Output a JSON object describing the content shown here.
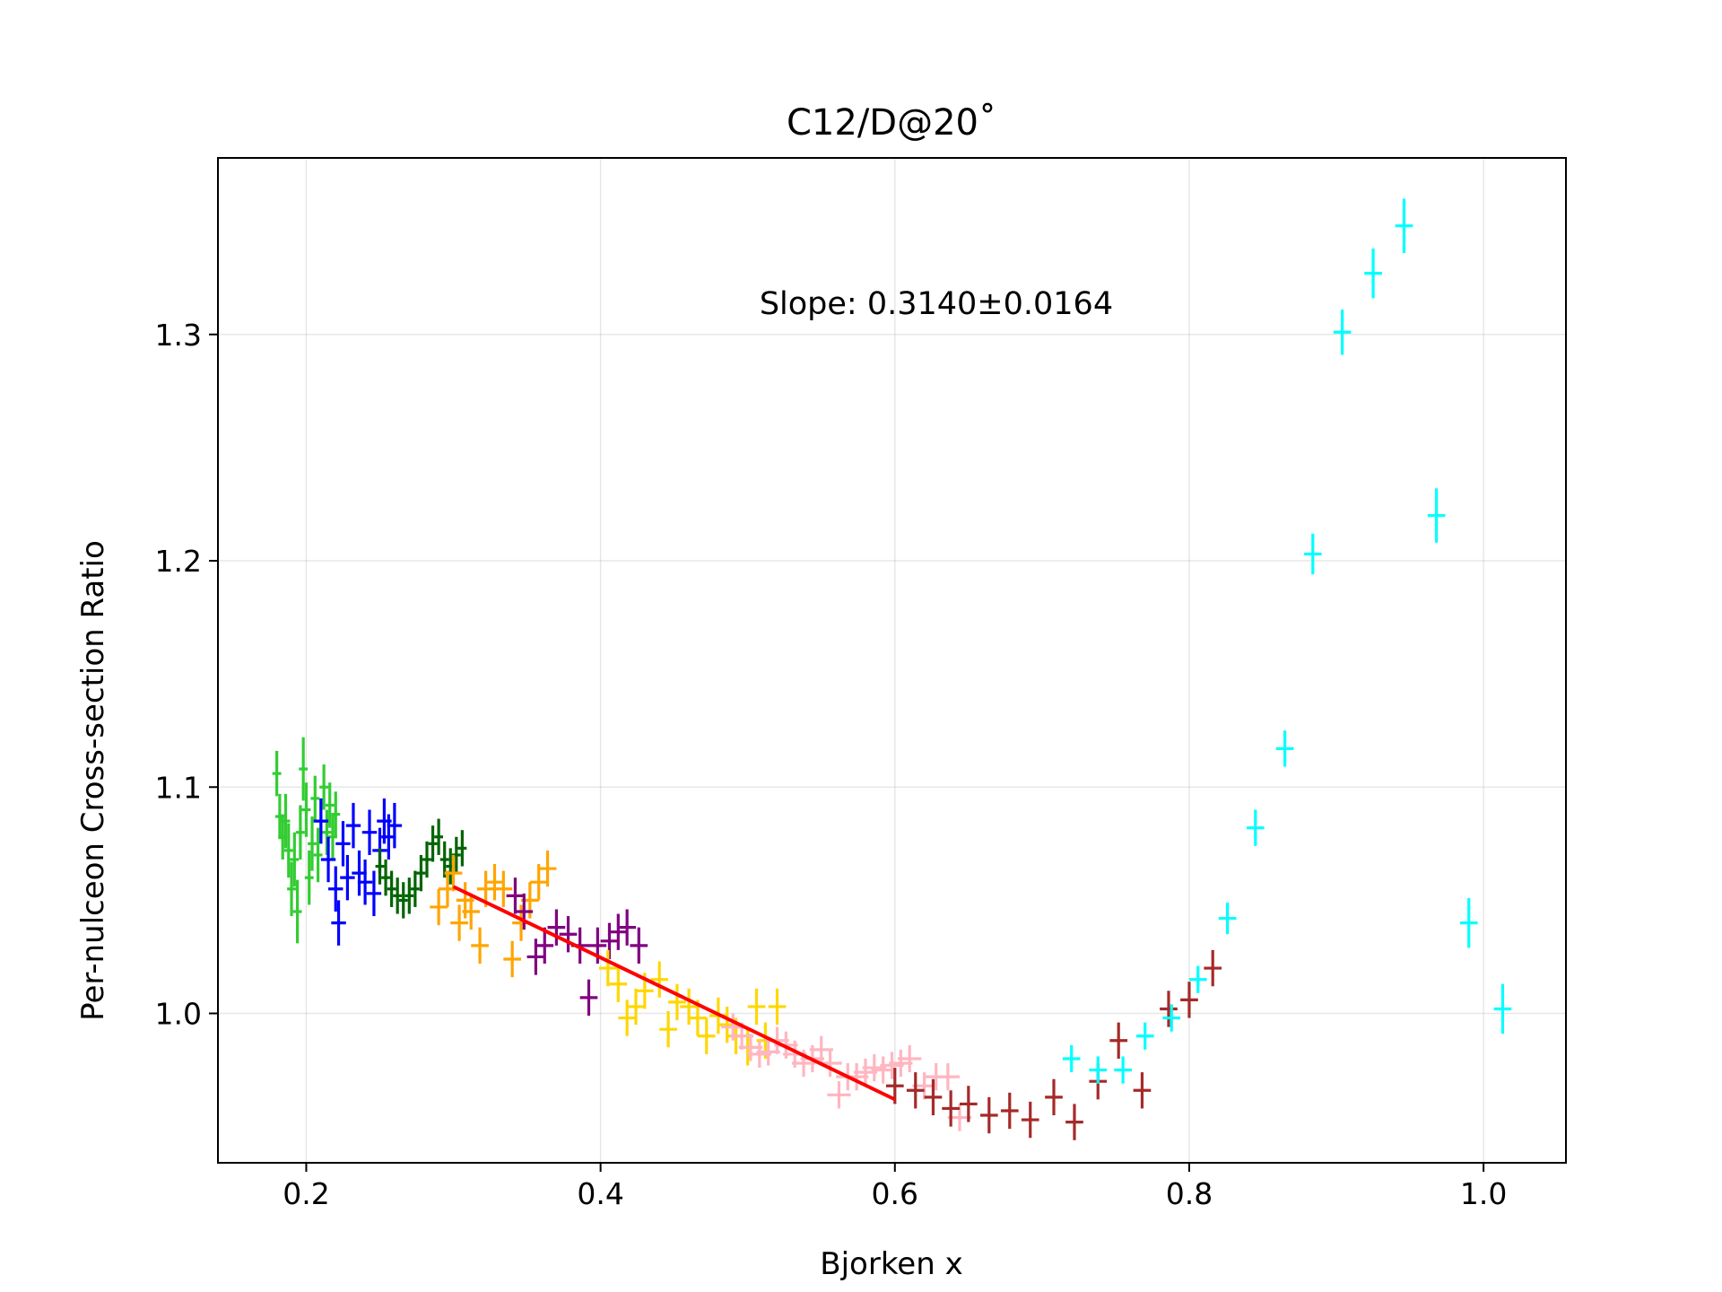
{
  "chart_data": {
    "type": "scatter",
    "title": "C12/D@20˚",
    "xlabel": "Bjorken x",
    "ylabel": "Per-nulceon Cross-section Ratio",
    "xlim": [
      0.14,
      1.056
    ],
    "ylim": [
      0.934,
      1.378
    ],
    "xticks": [
      0.2,
      0.4,
      0.6,
      0.8,
      1.0
    ],
    "xtick_labels": [
      "0.2",
      "0.4",
      "0.6",
      "0.8",
      "1.0"
    ],
    "yticks": [
      1.0,
      1.1,
      1.2,
      1.3
    ],
    "ytick_labels": [
      "1.0",
      "1.1",
      "1.2",
      "1.3"
    ],
    "grid": true,
    "annotation": {
      "text": "Slope: 0.3140±0.0164",
      "x": 0.508,
      "y": 1.309
    },
    "fit_line": {
      "color": "#ff0000",
      "x": [
        0.3,
        0.6
      ],
      "y": [
        1.056,
        0.962
      ],
      "slope": 0.314,
      "slope_error": 0.0164
    },
    "series": [
      {
        "color": "#32cd32",
        "points": [
          [
            0.18,
            1.106,
            0.003,
            0.01
          ],
          [
            0.182,
            1.087,
            0.003,
            0.01
          ],
          [
            0.184,
            1.078,
            0.003,
            0.01
          ],
          [
            0.186,
            1.085,
            0.003,
            0.012
          ],
          [
            0.188,
            1.072,
            0.003,
            0.012
          ],
          [
            0.19,
            1.055,
            0.003,
            0.012
          ],
          [
            0.192,
            1.068,
            0.003,
            0.012
          ],
          [
            0.194,
            1.045,
            0.003,
            0.014
          ],
          [
            0.196,
            1.08,
            0.003,
            0.012
          ],
          [
            0.198,
            1.108,
            0.003,
            0.014
          ],
          [
            0.2,
            1.09,
            0.003,
            0.012
          ],
          [
            0.202,
            1.06,
            0.003,
            0.012
          ],
          [
            0.204,
            1.075,
            0.003,
            0.012
          ],
          [
            0.206,
            1.095,
            0.003,
            0.01
          ],
          [
            0.208,
            1.07,
            0.003,
            0.012
          ],
          [
            0.21,
            1.085,
            0.003,
            0.01
          ],
          [
            0.212,
            1.1,
            0.003,
            0.01
          ],
          [
            0.214,
            1.08,
            0.003,
            0.01
          ],
          [
            0.216,
            1.092,
            0.003,
            0.01
          ],
          [
            0.218,
            1.078,
            0.003,
            0.01
          ],
          [
            0.22,
            1.088,
            0.003,
            0.01
          ]
        ]
      },
      {
        "color": "#0000ff",
        "points": [
          [
            0.21,
            1.085,
            0.005,
            0.01
          ],
          [
            0.215,
            1.068,
            0.005,
            0.01
          ],
          [
            0.22,
            1.055,
            0.005,
            0.01
          ],
          [
            0.222,
            1.04,
            0.005,
            0.01
          ],
          [
            0.225,
            1.075,
            0.005,
            0.01
          ],
          [
            0.228,
            1.06,
            0.005,
            0.01
          ],
          [
            0.232,
            1.083,
            0.005,
            0.01
          ],
          [
            0.236,
            1.062,
            0.005,
            0.01
          ],
          [
            0.24,
            1.058,
            0.005,
            0.01
          ],
          [
            0.243,
            1.08,
            0.005,
            0.01
          ],
          [
            0.246,
            1.053,
            0.005,
            0.01
          ],
          [
            0.25,
            1.072,
            0.005,
            0.01
          ],
          [
            0.253,
            1.085,
            0.005,
            0.01
          ],
          [
            0.256,
            1.078,
            0.005,
            0.01
          ],
          [
            0.26,
            1.083,
            0.005,
            0.01
          ]
        ]
      },
      {
        "color": "#006400",
        "points": [
          [
            0.25,
            1.065,
            0.003,
            0.008
          ],
          [
            0.254,
            1.06,
            0.003,
            0.008
          ],
          [
            0.258,
            1.055,
            0.003,
            0.008
          ],
          [
            0.262,
            1.052,
            0.003,
            0.008
          ],
          [
            0.266,
            1.05,
            0.003,
            0.008
          ],
          [
            0.27,
            1.052,
            0.003,
            0.008
          ],
          [
            0.274,
            1.055,
            0.003,
            0.008
          ],
          [
            0.278,
            1.062,
            0.003,
            0.008
          ],
          [
            0.282,
            1.068,
            0.003,
            0.008
          ],
          [
            0.286,
            1.075,
            0.003,
            0.008
          ],
          [
            0.29,
            1.078,
            0.003,
            0.008
          ],
          [
            0.294,
            1.068,
            0.003,
            0.008
          ],
          [
            0.298,
            1.065,
            0.003,
            0.008
          ],
          [
            0.302,
            1.07,
            0.003,
            0.008
          ],
          [
            0.306,
            1.073,
            0.003,
            0.008
          ]
        ]
      },
      {
        "color": "#ffa500",
        "points": [
          [
            0.29,
            1.047,
            0.006,
            0.008
          ],
          [
            0.296,
            1.055,
            0.006,
            0.008
          ],
          [
            0.3,
            1.062,
            0.006,
            0.008
          ],
          [
            0.304,
            1.04,
            0.006,
            0.008
          ],
          [
            0.308,
            1.05,
            0.006,
            0.008
          ],
          [
            0.312,
            1.045,
            0.006,
            0.008
          ],
          [
            0.318,
            1.03,
            0.006,
            0.008
          ],
          [
            0.322,
            1.055,
            0.006,
            0.008
          ],
          [
            0.328,
            1.058,
            0.006,
            0.008
          ],
          [
            0.334,
            1.055,
            0.006,
            0.008
          ],
          [
            0.34,
            1.024,
            0.006,
            0.008
          ],
          [
            0.346,
            1.04,
            0.006,
            0.008
          ],
          [
            0.352,
            1.05,
            0.006,
            0.008
          ],
          [
            0.358,
            1.058,
            0.006,
            0.008
          ],
          [
            0.364,
            1.064,
            0.006,
            0.008
          ]
        ]
      },
      {
        "color": "#800080",
        "points": [
          [
            0.342,
            1.052,
            0.006,
            0.008
          ],
          [
            0.348,
            1.045,
            0.006,
            0.008
          ],
          [
            0.356,
            1.025,
            0.006,
            0.008
          ],
          [
            0.362,
            1.03,
            0.006,
            0.008
          ],
          [
            0.37,
            1.038,
            0.006,
            0.008
          ],
          [
            0.378,
            1.035,
            0.006,
            0.008
          ],
          [
            0.386,
            1.03,
            0.006,
            0.008
          ],
          [
            0.392,
            1.007,
            0.006,
            0.008
          ],
          [
            0.398,
            1.03,
            0.006,
            0.008
          ],
          [
            0.406,
            1.032,
            0.006,
            0.008
          ],
          [
            0.412,
            1.036,
            0.006,
            0.008
          ],
          [
            0.418,
            1.038,
            0.006,
            0.008
          ],
          [
            0.426,
            1.03,
            0.006,
            0.008
          ]
        ]
      },
      {
        "color": "#ffd700",
        "points": [
          [
            0.405,
            1.02,
            0.006,
            0.008
          ],
          [
            0.412,
            1.013,
            0.006,
            0.008
          ],
          [
            0.418,
            0.998,
            0.006,
            0.008
          ],
          [
            0.424,
            1.003,
            0.006,
            0.008
          ],
          [
            0.43,
            1.01,
            0.006,
            0.008
          ],
          [
            0.44,
            1.015,
            0.006,
            0.008
          ],
          [
            0.446,
            0.993,
            0.006,
            0.008
          ],
          [
            0.452,
            1.005,
            0.006,
            0.008
          ],
          [
            0.46,
            1.003,
            0.006,
            0.008
          ],
          [
            0.466,
            0.998,
            0.006,
            0.008
          ],
          [
            0.472,
            0.99,
            0.006,
            0.008
          ],
          [
            0.48,
            0.999,
            0.006,
            0.008
          ],
          [
            0.486,
            0.995,
            0.006,
            0.008
          ],
          [
            0.492,
            0.99,
            0.006,
            0.008
          ],
          [
            0.5,
            0.985,
            0.006,
            0.008
          ],
          [
            0.506,
            1.003,
            0.006,
            0.008
          ],
          [
            0.512,
            0.988,
            0.006,
            0.008
          ],
          [
            0.52,
            1.003,
            0.006,
            0.008
          ]
        ]
      },
      {
        "color": "#ffb6c1",
        "points": [
          [
            0.49,
            0.994,
            0.008,
            0.006
          ],
          [
            0.496,
            0.99,
            0.008,
            0.006
          ],
          [
            0.502,
            0.985,
            0.008,
            0.006
          ],
          [
            0.508,
            0.982,
            0.008,
            0.006
          ],
          [
            0.514,
            0.983,
            0.008,
            0.006
          ],
          [
            0.52,
            0.988,
            0.008,
            0.006
          ],
          [
            0.526,
            0.986,
            0.008,
            0.006
          ],
          [
            0.532,
            0.982,
            0.008,
            0.006
          ],
          [
            0.538,
            0.978,
            0.008,
            0.006
          ],
          [
            0.544,
            0.98,
            0.008,
            0.006
          ],
          [
            0.55,
            0.984,
            0.008,
            0.006
          ],
          [
            0.556,
            0.978,
            0.008,
            0.006
          ],
          [
            0.562,
            0.964,
            0.008,
            0.006
          ],
          [
            0.568,
            0.972,
            0.008,
            0.006
          ],
          [
            0.574,
            0.972,
            0.008,
            0.006
          ],
          [
            0.58,
            0.974,
            0.008,
            0.006
          ],
          [
            0.586,
            0.976,
            0.008,
            0.006
          ],
          [
            0.592,
            0.975,
            0.008,
            0.006
          ],
          [
            0.598,
            0.977,
            0.008,
            0.006
          ],
          [
            0.604,
            0.978,
            0.008,
            0.006
          ],
          [
            0.61,
            0.98,
            0.008,
            0.006
          ],
          [
            0.62,
            0.968,
            0.008,
            0.006
          ],
          [
            0.628,
            0.972,
            0.008,
            0.006
          ],
          [
            0.636,
            0.972,
            0.008,
            0.006
          ],
          [
            0.644,
            0.954,
            0.008,
            0.006
          ]
        ]
      },
      {
        "color": "#a52a2a",
        "points": [
          [
            0.6,
            0.968,
            0.006,
            0.008
          ],
          [
            0.614,
            0.966,
            0.006,
            0.008
          ],
          [
            0.626,
            0.963,
            0.006,
            0.008
          ],
          [
            0.638,
            0.958,
            0.006,
            0.008
          ],
          [
            0.65,
            0.96,
            0.006,
            0.008
          ],
          [
            0.664,
            0.955,
            0.006,
            0.008
          ],
          [
            0.678,
            0.957,
            0.006,
            0.008
          ],
          [
            0.692,
            0.953,
            0.006,
            0.008
          ],
          [
            0.708,
            0.963,
            0.006,
            0.008
          ],
          [
            0.722,
            0.952,
            0.006,
            0.008
          ],
          [
            0.738,
            0.97,
            0.006,
            0.008
          ],
          [
            0.752,
            0.988,
            0.006,
            0.008
          ],
          [
            0.768,
            0.966,
            0.006,
            0.008
          ],
          [
            0.786,
            1.002,
            0.006,
            0.008
          ],
          [
            0.8,
            1.006,
            0.006,
            0.008
          ],
          [
            0.816,
            1.02,
            0.006,
            0.008
          ]
        ]
      },
      {
        "color": "#00ffff",
        "points": [
          [
            0.72,
            0.98,
            0.006,
            0.006
          ],
          [
            0.738,
            0.975,
            0.006,
            0.006
          ],
          [
            0.755,
            0.975,
            0.006,
            0.006
          ],
          [
            0.77,
            0.99,
            0.006,
            0.006
          ],
          [
            0.788,
            0.998,
            0.006,
            0.006
          ],
          [
            0.806,
            1.015,
            0.006,
            0.006
          ],
          [
            0.826,
            1.042,
            0.006,
            0.007
          ],
          [
            0.845,
            1.082,
            0.006,
            0.008
          ],
          [
            0.865,
            1.117,
            0.006,
            0.008
          ],
          [
            0.884,
            1.203,
            0.006,
            0.009
          ],
          [
            0.904,
            1.301,
            0.006,
            0.01
          ],
          [
            0.925,
            1.327,
            0.006,
            0.011
          ],
          [
            0.946,
            1.348,
            0.006,
            0.012
          ],
          [
            0.968,
            1.22,
            0.006,
            0.012
          ],
          [
            0.99,
            1.04,
            0.006,
            0.011
          ],
          [
            1.013,
            1.002,
            0.006,
            0.011
          ]
        ]
      }
    ]
  }
}
